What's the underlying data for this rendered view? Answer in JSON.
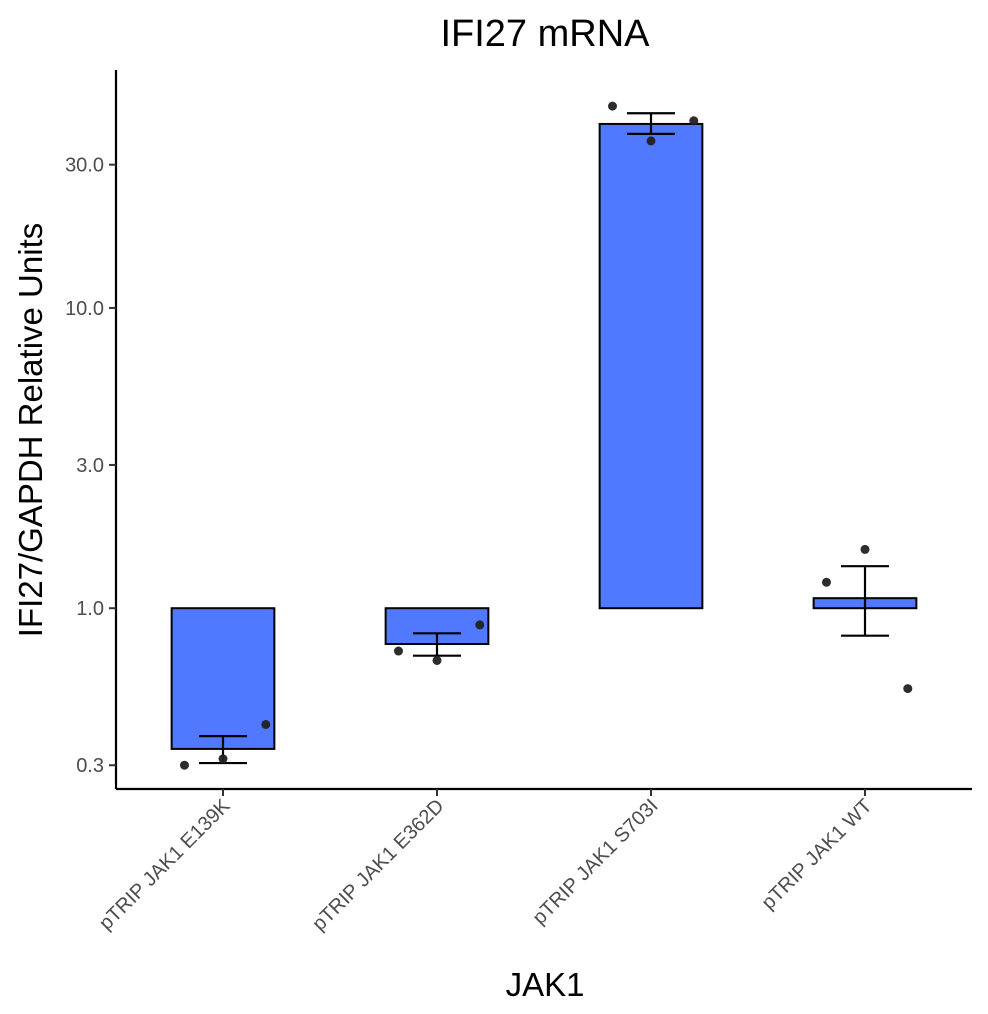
{
  "chart_data": {
    "type": "bar",
    "title": "IFI27 mRNA",
    "xlabel": "JAK1",
    "ylabel": "IFI27/GAPDH Relative Units",
    "yscale": "log",
    "ylim": [
      0.25,
      62
    ],
    "baseline": 1.0,
    "yticks": [
      0.3,
      1.0,
      3.0,
      10.0,
      30.0
    ],
    "ytick_labels": [
      "0.3",
      "1.0",
      "3.0",
      "10.0",
      "30.0"
    ],
    "categories": [
      "pTRIP JAK1 E139K",
      "pTRIP JAK1 E362D",
      "pTRIP JAK1 S703I",
      "pTRIP JAK1 WT"
    ],
    "values": [
      0.34,
      0.76,
      41.0,
      1.08
    ],
    "error_low": [
      0.305,
      0.695,
      38.0,
      0.81
    ],
    "error_high": [
      0.375,
      0.825,
      44.5,
      1.38
    ],
    "points": [
      [
        0.3,
        0.315,
        0.41
      ],
      [
        0.72,
        0.67,
        0.88
      ],
      [
        47.0,
        36.0,
        42.0
      ],
      [
        1.22,
        1.57,
        0.54
      ]
    ],
    "bar_color": "#5079FF",
    "grid": false,
    "legend": "none"
  }
}
